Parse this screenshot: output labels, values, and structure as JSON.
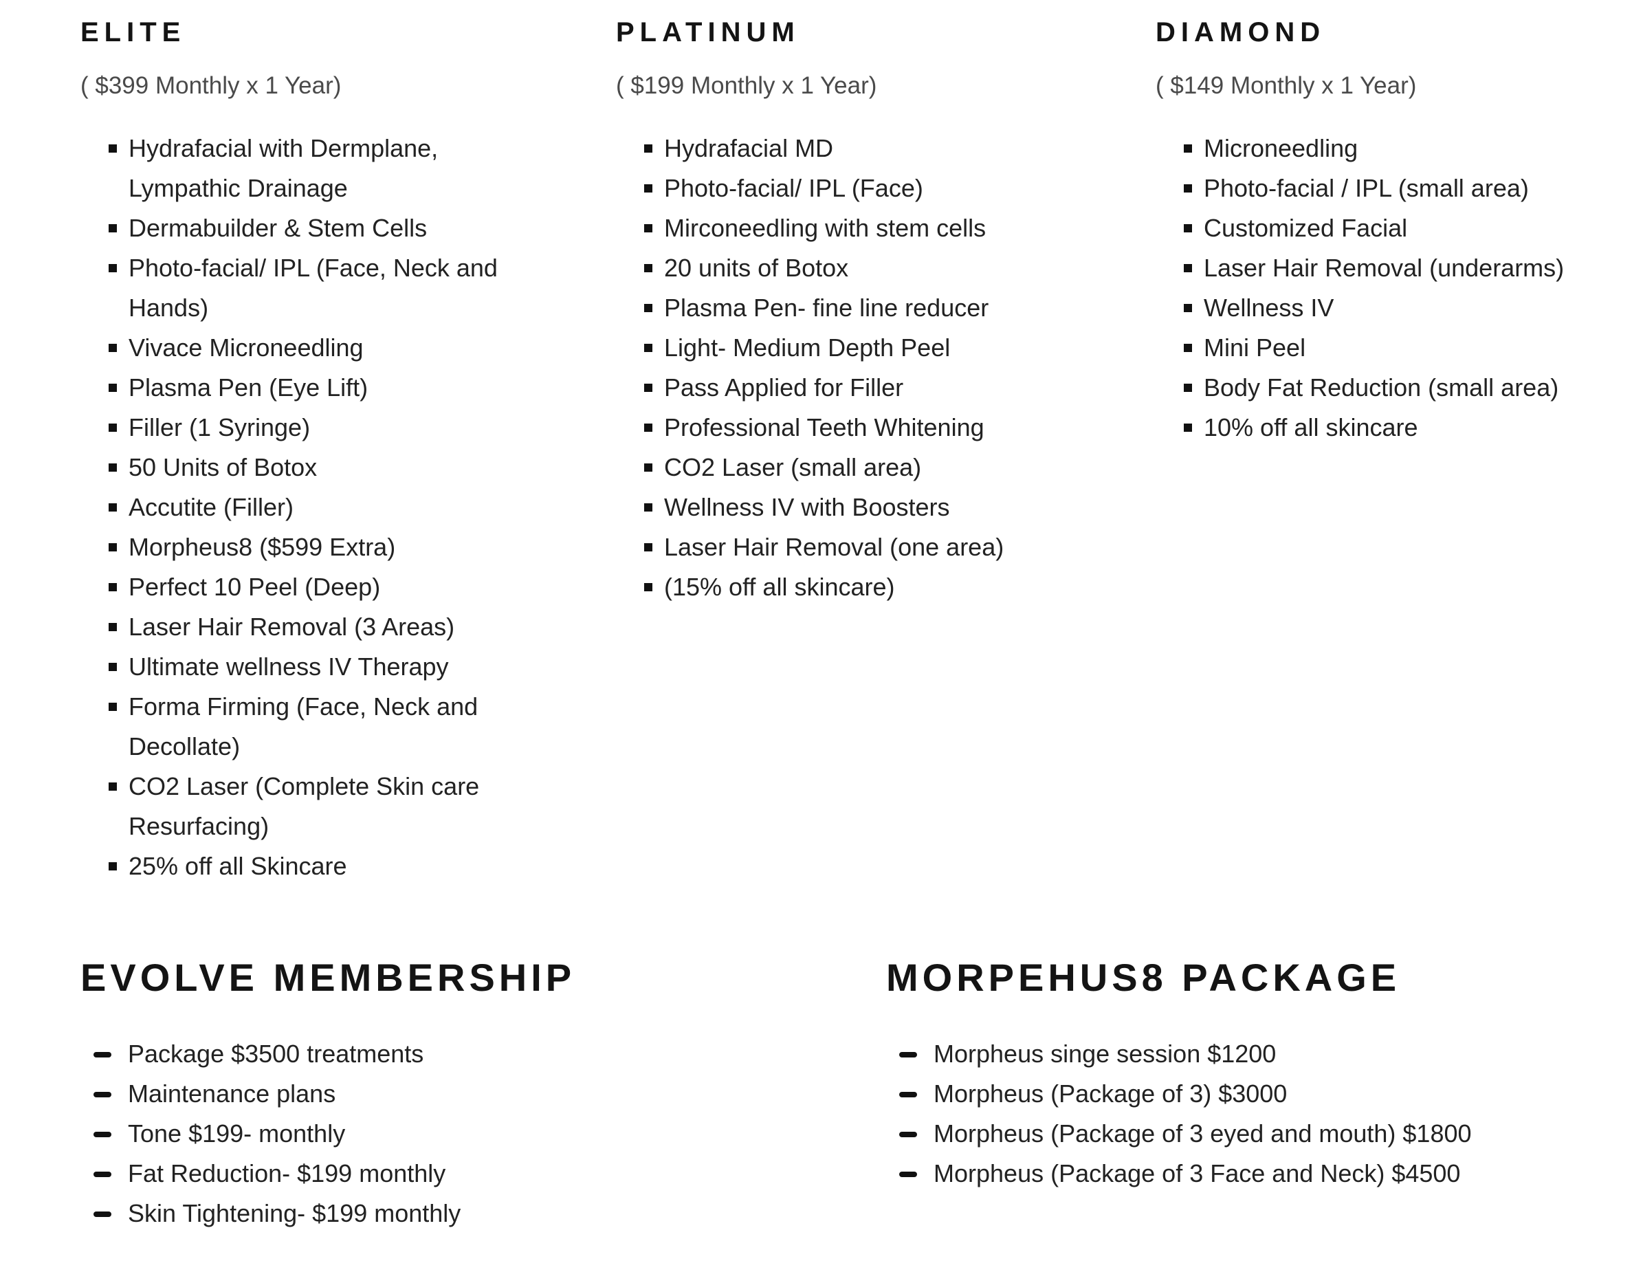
{
  "colors": {
    "background": "#ffffff",
    "heading": "#141414",
    "body_text": "#222222",
    "price_subtitle": "#4a4a4a",
    "bullet": "#111111"
  },
  "tiers": [
    {
      "name": "ELITE",
      "price": "( $399 Monthly x 1 Year)",
      "benefits": [
        "Hydrafacial with Dermplane, Lympathic Drainage",
        "Dermabuilder & Stem Cells",
        "Photo-facial/ IPL (Face, Neck and Hands)",
        "Vivace Microneedling",
        "Plasma Pen (Eye Lift)",
        "Filler (1 Syringe)",
        "50 Units of Botox",
        "Accutite (Filler)",
        "Morpheus8 ($599 Extra)",
        "Perfect 10 Peel (Deep)",
        "Laser Hair Removal (3 Areas)",
        "Ultimate wellness IV Therapy",
        "Forma Firming (Face, Neck and Decollate)",
        "CO2 Laser (Complete Skin care Resurfacing)",
        "25% off all Skincare"
      ]
    },
    {
      "name": "PLATINUM",
      "price": "( $199 Monthly x 1 Year)",
      "benefits": [
        "Hydrafacial MD",
        "Photo-facial/ IPL (Face)",
        "Mirconeedling with stem cells",
        "20 units of Botox",
        "Plasma Pen- fine line reducer",
        "Light- Medium Depth Peel",
        "Pass Applied for Filler",
        "Professional Teeth Whitening",
        "CO2 Laser (small area)",
        "Wellness IV with Boosters",
        "Laser Hair Removal (one area)",
        "(15% off all skincare)"
      ]
    },
    {
      "name": "DIAMOND",
      "price": "( $149 Monthly x 1 Year)",
      "benefits": [
        "Microneedling",
        "Photo-facial / IPL (small area)",
        "Customized Facial",
        "Laser Hair Removal (underarms)",
        "Wellness IV",
        "Mini Peel",
        "Body Fat Reduction (small area)",
        "10% off all skincare"
      ]
    }
  ],
  "sections": [
    {
      "title": "EVOLVE MEMBERSHIP",
      "items": [
        "Package $3500 treatments",
        "Maintenance plans",
        "Tone $199- monthly",
        "Fat Reduction- $199 monthly",
        "Skin Tightening- $199 monthly"
      ]
    },
    {
      "title": "MORPEHUS8 PACKAGE",
      "items": [
        "Morpheus singe session $1200",
        "Morpheus (Package of 3) $3000",
        "Morpheus (Package of 3 eyed and mouth) $1800",
        "Morpheus (Package of 3 Face and Neck) $4500"
      ]
    }
  ]
}
